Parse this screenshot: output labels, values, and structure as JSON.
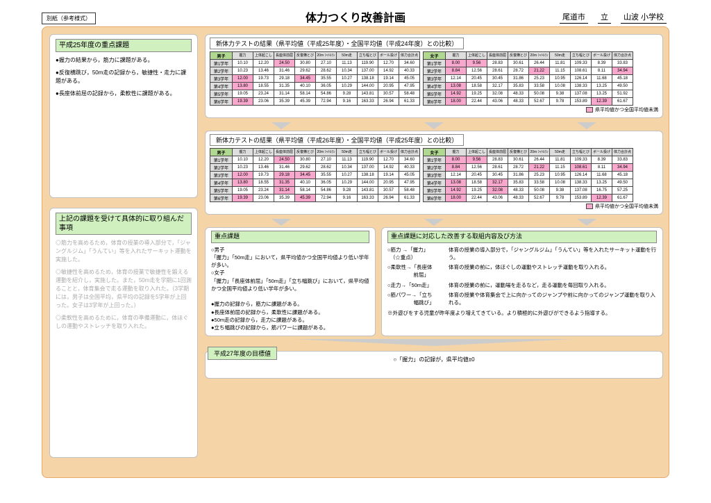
{
  "meta": {
    "corner": "別紙（参考様式）",
    "title": "体力つくり改善計画",
    "city": "尾道市",
    "ku": "立",
    "school": "山波 小学校"
  },
  "colors": {
    "highlight": "#f7a8cc",
    "headerGreen": "#b0d890",
    "panelGreen": "#d0f0c0",
    "pageBg": "#f5d4a8",
    "headerGray": "#dedede"
  },
  "left": {
    "issuesTitle": "平成25年度の重点課題",
    "issues": [
      "●握力の結果から，筋力に課題がある。",
      "●反復横跳び，50m走の記録から，敏捷性・走力に課題がある。",
      "●長座体前屈の記録から，柔軟性に課題がある。"
    ],
    "tackleTitle": "上記の課題を受けて具体的に取り組んだ事項",
    "tackle": [
      "◎筋力を高めるため，体育の授業の導入部分で，「ジャングルジム」「うんてい」等を入れたサーキット運動を実施した。",
      "◎敏捷性を高めるため，体育の授業で敏捷性を鍛える運動を紹介し，実施した。また，50m走を学期に1回測ることと，体育集会で走る運動を取り入れた。（3学期には，男子は全国平均，県平均の記録を5学年が上回った。女子は3学年が上回った。）",
      "◎柔軟性を高めるために，体育の準備運動に，体ほぐしの運動やストレッチを取り入れた。"
    ]
  },
  "legend": "県平均値かつ全国平均値未満",
  "tableCaptions": [
    "新体力テストの結果（県平均値（平成25年度）・全国平均値（平成24年度）との比較）",
    "新体力テストの結果（県平均値（平成26年度）・全国平均値（平成25年度）との比較）"
  ],
  "columns": [
    "握力",
    "上体起こし",
    "長座体前屈",
    "反復横とび",
    "20m\nｼｬﾄﾙﾗﾝ",
    "50m走",
    "立ち幅とび",
    "ボール投げ",
    "体力合計点"
  ],
  "groupLabels": {
    "boys": "男子",
    "girls": "女子"
  },
  "grades": [
    "第1学年",
    "第2学年",
    "第3学年",
    "第4学年",
    "第5学年",
    "第6学年"
  ],
  "table1": {
    "boys": {
      "rows": [
        [
          "10.10",
          "12.20",
          "24.50",
          "30.80",
          "27.10",
          "11.13",
          "119.90",
          "12.70",
          "34.60"
        ],
        [
          "10.23",
          "13.46",
          "31.46",
          "29.62",
          "28.62",
          "10.34",
          "137.00",
          "14.92",
          "40.33"
        ],
        [
          "12.00",
          "19.73",
          "29.18",
          "34.45",
          "35.55",
          "10.27",
          "138.18",
          "19.14",
          "45.05"
        ],
        [
          "13.80",
          "18.55",
          "31.35",
          "40.10",
          "36.05",
          "10.29",
          "144.00",
          "20.95",
          "47.95"
        ],
        [
          "19.05",
          "23.24",
          "31.14",
          "58.14",
          "54.86",
          "9.28",
          "143.81",
          "30.57",
          "58.48"
        ],
        [
          "19.39",
          "23.06",
          "35.39",
          "45.39",
          "72.94",
          "9.16",
          "163.33",
          "26.94",
          "61.33"
        ]
      ],
      "hl": [
        [
          2
        ],
        [],
        [
          0,
          3
        ],
        [
          0
        ],
        [],
        [
          0
        ]
      ]
    },
    "girls": {
      "rows": [
        [
          "8.00",
          "9.56",
          "28.83",
          "30.61",
          "26.44",
          "11.81",
          "109.33",
          "8.39",
          "33.83"
        ],
        [
          "8.84",
          "12.56",
          "28.61",
          "28.72",
          "21.22",
          "11.15",
          "108.61",
          "8.11",
          "34.94"
        ],
        [
          "12.14",
          "20.45",
          "30.45",
          "31.86",
          "25.23",
          "10.95",
          "126.14",
          "11.68",
          "45.18"
        ],
        [
          "13.08",
          "18.58",
          "32.17",
          "35.83",
          "33.58",
          "10.08",
          "138.33",
          "13.25",
          "49.50"
        ],
        [
          "14.92",
          "19.25",
          "32.08",
          "48.33",
          "50.08",
          "9.38",
          "137.08",
          "13.25",
          "51.92"
        ],
        [
          "18.00",
          "22.44",
          "43.06",
          "48.33",
          "52.67",
          "9.78",
          "153.89",
          "12.39",
          "61.67"
        ]
      ],
      "hl": [
        [
          0,
          1
        ],
        [
          0,
          4,
          8
        ],
        [],
        [
          0
        ],
        [
          0
        ],
        [
          0,
          7
        ]
      ]
    }
  },
  "table2": {
    "boys": {
      "rows": [
        [
          "10.10",
          "12.20",
          "24.50",
          "30.80",
          "27.10",
          "11.13",
          "119.90",
          "12.70",
          "34.60"
        ],
        [
          "10.23",
          "13.46",
          "31.46",
          "29.62",
          "28.62",
          "10.34",
          "137.00",
          "14.92",
          "40.33"
        ],
        [
          "12.00",
          "19.73",
          "29.18",
          "34.45",
          "35.55",
          "10.27",
          "138.18",
          "19.14",
          "45.05"
        ],
        [
          "13.80",
          "18.55",
          "31.35",
          "40.10",
          "36.05",
          "10.29",
          "144.00",
          "20.95",
          "47.95"
        ],
        [
          "19.05",
          "23.24",
          "31.14",
          "58.14",
          "54.86",
          "9.28",
          "143.81",
          "30.57",
          "58.48"
        ],
        [
          "19.39",
          "23.06",
          "35.39",
          "45.39",
          "72.94",
          "9.16",
          "163.33",
          "26.94",
          "61.33"
        ]
      ],
      "hl": [
        [
          2
        ],
        [],
        [
          0,
          2,
          3
        ],
        [
          0,
          2
        ],
        [
          2
        ],
        [
          0,
          3
        ]
      ]
    },
    "girls": {
      "rows": [
        [
          "8.00",
          "9.56",
          "28.83",
          "30.61",
          "26.44",
          "11.81",
          "109.33",
          "8.39",
          "33.83"
        ],
        [
          "8.84",
          "12.56",
          "28.61",
          "28.72",
          "21.22",
          "11.15",
          "108.61",
          "8.11",
          "34.94"
        ],
        [
          "12.14",
          "20.45",
          "30.45",
          "31.86",
          "25.23",
          "10.95",
          "126.14",
          "11.68",
          "45.18"
        ],
        [
          "13.08",
          "18.58",
          "32.17",
          "35.83",
          "33.58",
          "10.08",
          "138.33",
          "13.25",
          "49.50"
        ],
        [
          "14.92",
          "19.25",
          "32.08",
          "48.33",
          "50.08",
          "9.38",
          "137.08",
          "16.75",
          "57.25"
        ],
        [
          "18.00",
          "22.44",
          "43.06",
          "48.33",
          "52.67",
          "9.78",
          "153.89",
          "12.39",
          "61.67"
        ]
      ],
      "hl": [
        [
          0,
          1
        ],
        [
          0,
          4,
          6,
          8
        ],
        [],
        [
          0,
          2
        ],
        [
          0,
          2
        ],
        [
          0,
          7
        ]
      ]
    }
  },
  "jutenTitle": "重点課題",
  "juten": [
    "○男子",
    "「握力」「50m走」において，県平均値かつ全国平均値より低い学年が多い。",
    "○女子",
    "「握力」「長座体前屈」「50m走」「立ち幅跳び」において，県平均値かつ全国平均値より低い学年が多い。",
    "",
    "●握力の記録から，筋力に課題がある。",
    "●長座体前屈の記録から，柔軟性に課題がある。",
    "●50m走の記録から，走力に課題がある。",
    "●立ち幅跳びの記録から，筋パワーに課題がある。"
  ],
  "kaizenTitle": "重点課題に対応した改善する取組内容及び方法",
  "kaizen": [
    {
      "lab": "○筋力 →「握力」\n　（☆重点）",
      "txt": "体育の授業の導入部分で，「ジャングルジム」「うんてい」等を入れたサーキット運動を行う。"
    },
    {
      "lab": "○柔軟性→「長座体\n　　　　　前屈」",
      "txt": "体育の授業の前に，体ほぐしの運動やストレッチ運動を取り入れる。"
    },
    {
      "lab": "○走力→「50m走」",
      "txt": "体育の授業の前に，運動場を走るなど，走る運動を毎回取り入れる。"
    },
    {
      "lab": "○筋パワー→「立ち\n　　　　　幅跳び」",
      "txt": "体育の授業や体育集会で上に向かってのジャンプや前に向かってのジャンプ運動を取り入れる。"
    }
  ],
  "kaizenNote": "※外遊びをする児童が昨年度より増えてきている。より積極的に外遊びができるよう指導する。",
  "goalTitle": "平成27年度の目標値",
  "goalBody": "○「握力」の記録が，県平均値±0"
}
